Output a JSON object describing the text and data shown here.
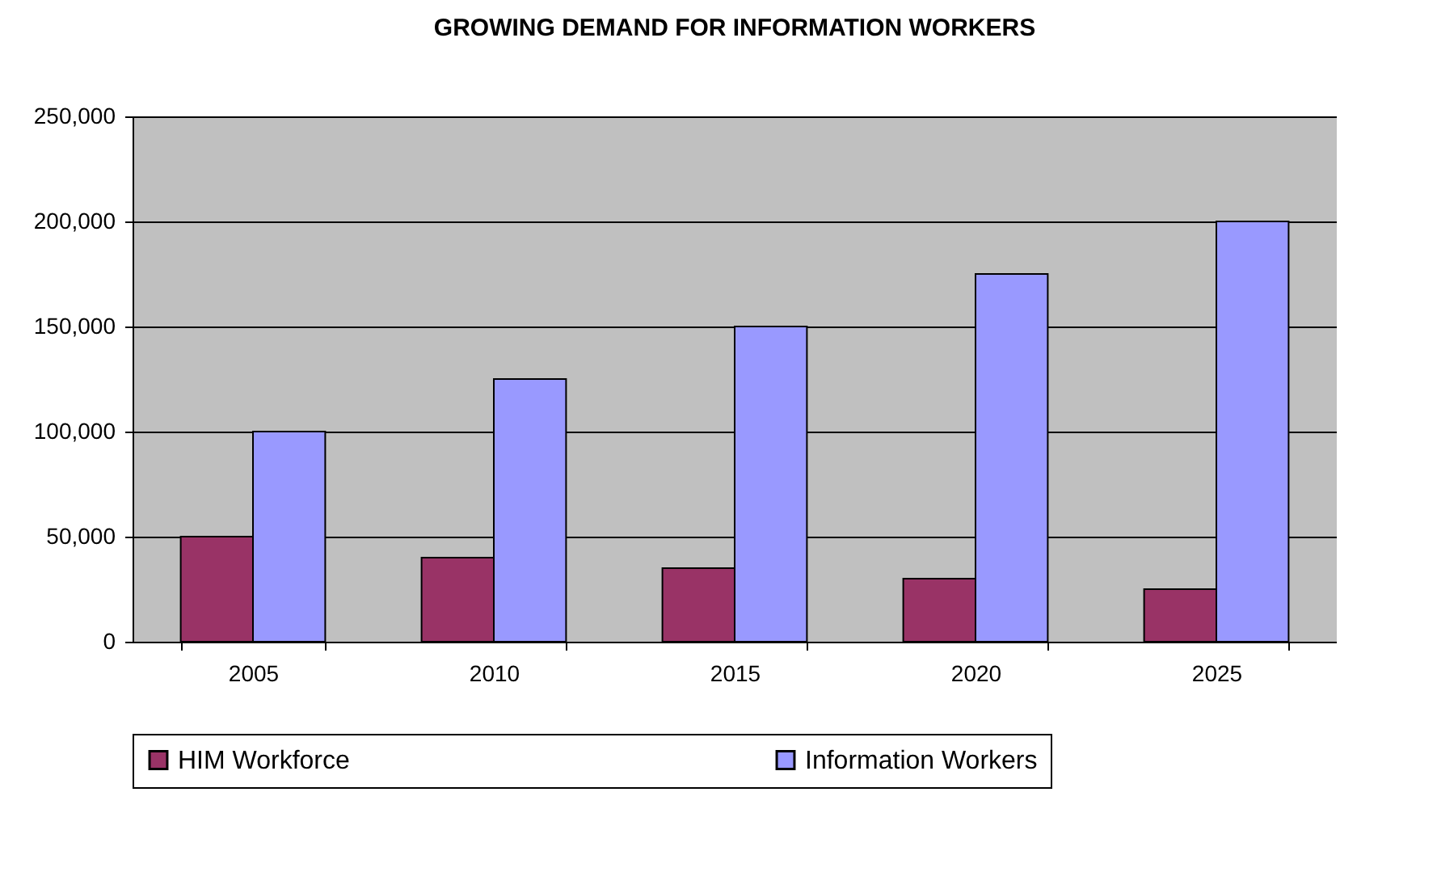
{
  "chart_data": {
    "type": "bar",
    "title": "GROWING DEMAND FOR INFORMATION WORKERS",
    "categories": [
      "2005",
      "2010",
      "2015",
      "2020",
      "2025"
    ],
    "series": [
      {
        "name": "HIM Workforce",
        "color": "#993366",
        "values": [
          50000,
          40000,
          35000,
          30000,
          25000
        ]
      },
      {
        "name": "Information Workers",
        "color": "#9999ff",
        "values": [
          100000,
          125000,
          150000,
          175000,
          200000
        ]
      }
    ],
    "ylim": [
      0,
      250000
    ],
    "yticks": [
      0,
      {
        "value": 50000,
        "label": "50,000"
      },
      {
        "value": 100000,
        "label": "100,000"
      },
      {
        "value": 150000,
        "label": "150,000"
      },
      {
        "value": 200000,
        "label": "200,000"
      },
      {
        "value": 250000,
        "label": "250,000"
      }
    ],
    "grid": "y",
    "legend": "bottom"
  }
}
